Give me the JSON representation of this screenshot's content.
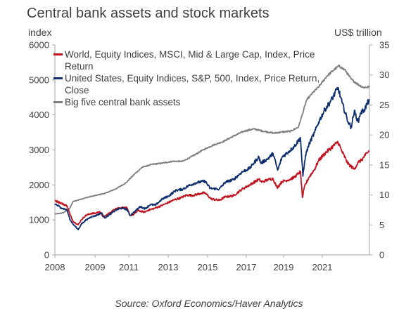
{
  "chart_data": {
    "type": "line",
    "title": "Central bank assets and stock markets",
    "ylabel_left": "index",
    "ylabel_right": "US$ trillion",
    "source": "Source: Oxford Economics/Haver Analytics",
    "ylim_left": [
      0,
      6000
    ],
    "ylim_right": [
      0,
      35
    ],
    "xlim": [
      2008.0,
      2023.5
    ],
    "x_ticks": [
      "2008",
      "2009",
      "2011",
      "2013",
      "2015",
      "2017",
      "2019",
      "2021"
    ],
    "y_ticks_left": [
      "6000",
      "5000",
      "4000",
      "3000",
      "2000",
      "1000",
      "0"
    ],
    "y_ticks_right": [
      "35",
      "30",
      "25",
      "20",
      "15",
      "10",
      "5",
      "0"
    ],
    "legend_position": "top-left",
    "series": [
      {
        "name": "World, Equity Indices, MSCI, Mid & Large Cap, Index, Price Return",
        "axis": "left",
        "color": "#c0141e",
        "points": [
          [
            2008.0,
            1560
          ],
          [
            2008.3,
            1480
          ],
          [
            2008.6,
            1400
          ],
          [
            2008.75,
            1150
          ],
          [
            2008.9,
            960
          ],
          [
            2009.15,
            860
          ],
          [
            2009.3,
            1000
          ],
          [
            2009.5,
            1120
          ],
          [
            2009.75,
            1180
          ],
          [
            2010.0,
            1190
          ],
          [
            2010.2,
            1240
          ],
          [
            2010.4,
            1080
          ],
          [
            2010.7,
            1200
          ],
          [
            2011.0,
            1330
          ],
          [
            2011.3,
            1350
          ],
          [
            2011.55,
            1340
          ],
          [
            2011.7,
            1130
          ],
          [
            2011.9,
            1160
          ],
          [
            2012.1,
            1270
          ],
          [
            2012.4,
            1220
          ],
          [
            2012.6,
            1280
          ],
          [
            2012.9,
            1330
          ],
          [
            2013.3,
            1420
          ],
          [
            2013.6,
            1500
          ],
          [
            2013.9,
            1580
          ],
          [
            2014.2,
            1630
          ],
          [
            2014.5,
            1710
          ],
          [
            2014.8,
            1700
          ],
          [
            2015.2,
            1760
          ],
          [
            2015.4,
            1770
          ],
          [
            2015.7,
            1600
          ],
          [
            2016.1,
            1560
          ],
          [
            2016.4,
            1660
          ],
          [
            2016.8,
            1690
          ],
          [
            2017.2,
            1870
          ],
          [
            2017.6,
            2000
          ],
          [
            2018.05,
            2160
          ],
          [
            2018.2,
            2080
          ],
          [
            2018.5,
            2150
          ],
          [
            2018.75,
            2180
          ],
          [
            2018.95,
            1920
          ],
          [
            2019.2,
            2100
          ],
          [
            2019.5,
            2140
          ],
          [
            2019.8,
            2220
          ],
          [
            2020.1,
            2380
          ],
          [
            2020.2,
            1640
          ],
          [
            2020.3,
            1950
          ],
          [
            2020.5,
            2200
          ],
          [
            2020.8,
            2450
          ],
          [
            2021.0,
            2700
          ],
          [
            2021.3,
            2900
          ],
          [
            2021.6,
            3050
          ],
          [
            2021.95,
            3230
          ],
          [
            2022.15,
            2950
          ],
          [
            2022.45,
            2600
          ],
          [
            2022.75,
            2450
          ],
          [
            2022.95,
            2650
          ],
          [
            2023.1,
            2700
          ],
          [
            2023.3,
            2850
          ],
          [
            2023.5,
            2980
          ]
        ]
      },
      {
        "name": "United States, Equity Indices, S&P, 500, Index, Price Return, Close",
        "axis": "left",
        "color": "#0e2e6e",
        "points": [
          [
            2008.0,
            1460
          ],
          [
            2008.3,
            1350
          ],
          [
            2008.6,
            1280
          ],
          [
            2008.75,
            1000
          ],
          [
            2008.9,
            880
          ],
          [
            2009.15,
            720
          ],
          [
            2009.3,
            880
          ],
          [
            2009.5,
            980
          ],
          [
            2009.75,
            1080
          ],
          [
            2010.0,
            1120
          ],
          [
            2010.3,
            1200
          ],
          [
            2010.45,
            1060
          ],
          [
            2010.7,
            1150
          ],
          [
            2011.0,
            1280
          ],
          [
            2011.3,
            1340
          ],
          [
            2011.55,
            1300
          ],
          [
            2011.7,
            1130
          ],
          [
            2011.9,
            1220
          ],
          [
            2012.2,
            1380
          ],
          [
            2012.45,
            1320
          ],
          [
            2012.7,
            1440
          ],
          [
            2012.95,
            1420
          ],
          [
            2013.3,
            1600
          ],
          [
            2013.6,
            1680
          ],
          [
            2013.95,
            1840
          ],
          [
            2014.3,
            1880
          ],
          [
            2014.6,
            1980
          ],
          [
            2014.95,
            2060
          ],
          [
            2015.4,
            2110
          ],
          [
            2015.65,
            1900
          ],
          [
            2016.1,
            1880
          ],
          [
            2016.4,
            2080
          ],
          [
            2016.8,
            2150
          ],
          [
            2017.2,
            2360
          ],
          [
            2017.6,
            2480
          ],
          [
            2018.05,
            2800
          ],
          [
            2018.15,
            2620
          ],
          [
            2018.5,
            2750
          ],
          [
            2018.75,
            2900
          ],
          [
            2018.98,
            2420
          ],
          [
            2019.2,
            2800
          ],
          [
            2019.5,
            2940
          ],
          [
            2019.8,
            3100
          ],
          [
            2020.1,
            3350
          ],
          [
            2020.22,
            2250
          ],
          [
            2020.35,
            2850
          ],
          [
            2020.55,
            3200
          ],
          [
            2020.8,
            3500
          ],
          [
            2021.0,
            3800
          ],
          [
            2021.3,
            4150
          ],
          [
            2021.6,
            4400
          ],
          [
            2021.95,
            4780
          ],
          [
            2022.15,
            4350
          ],
          [
            2022.45,
            3800
          ],
          [
            2022.6,
            3650
          ],
          [
            2022.75,
            4100
          ],
          [
            2022.95,
            3800
          ],
          [
            2023.05,
            4050
          ],
          [
            2023.25,
            4150
          ],
          [
            2023.5,
            4450
          ]
        ]
      },
      {
        "name": "Big five central bank assets",
        "axis": "right",
        "color": "#7f7f7f",
        "points": [
          [
            2008.0,
            6.8
          ],
          [
            2008.4,
            7.0
          ],
          [
            2008.7,
            7.6
          ],
          [
            2008.9,
            8.9
          ],
          [
            2009.2,
            9.2
          ],
          [
            2009.6,
            9.6
          ],
          [
            2010.0,
            9.9
          ],
          [
            2010.5,
            10.3
          ],
          [
            2011.0,
            11.0
          ],
          [
            2011.5,
            12.0
          ],
          [
            2011.9,
            13.4
          ],
          [
            2012.3,
            14.6
          ],
          [
            2012.8,
            15.1
          ],
          [
            2013.3,
            15.3
          ],
          [
            2013.8,
            15.6
          ],
          [
            2014.3,
            15.6
          ],
          [
            2014.8,
            16.5
          ],
          [
            2015.3,
            17.5
          ],
          [
            2015.8,
            18.3
          ],
          [
            2016.3,
            18.9
          ],
          [
            2016.8,
            19.8
          ],
          [
            2017.3,
            20.6
          ],
          [
            2017.8,
            21.0
          ],
          [
            2018.3,
            20.6
          ],
          [
            2018.8,
            20.3
          ],
          [
            2019.2,
            20.5
          ],
          [
            2019.6,
            20.6
          ],
          [
            2020.0,
            21.3
          ],
          [
            2020.2,
            23.5
          ],
          [
            2020.4,
            25.8
          ],
          [
            2020.7,
            27.0
          ],
          [
            2021.0,
            28.0
          ],
          [
            2021.4,
            29.8
          ],
          [
            2021.8,
            31.0
          ],
          [
            2022.0,
            31.5
          ],
          [
            2022.3,
            30.8
          ],
          [
            2022.6,
            29.3
          ],
          [
            2022.9,
            28.5
          ],
          [
            2023.2,
            27.9
          ],
          [
            2023.5,
            28.0
          ]
        ]
      }
    ]
  }
}
